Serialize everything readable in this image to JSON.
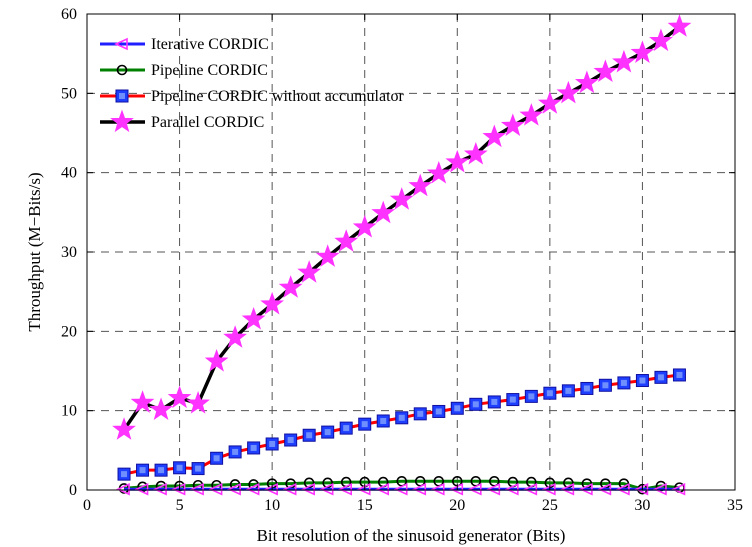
{
  "chart_data": {
    "type": "line",
    "title": "",
    "xlabel": "Bit resolution of the sinusoid generator (Bits)",
    "ylabel": "Throughput (M−Bits/s)",
    "xlim": [
      0,
      35
    ],
    "ylim": [
      0,
      60
    ],
    "x_ticks": [
      0,
      5,
      10,
      15,
      20,
      25,
      30,
      35
    ],
    "y_ticks": [
      0,
      10,
      20,
      30,
      40,
      50,
      60
    ],
    "grid": true,
    "legend_position": "top-left",
    "x": [
      2,
      3,
      4,
      5,
      6,
      7,
      8,
      9,
      10,
      11,
      12,
      13,
      14,
      15,
      16,
      17,
      18,
      19,
      20,
      21,
      22,
      23,
      24,
      25,
      26,
      27,
      28,
      29,
      30,
      31,
      32
    ],
    "series": [
      {
        "name": "Iterative CORDIC",
        "line_color": "#1f1fff",
        "marker": "triangle-left",
        "marker_color": "#ff33ff",
        "values": [
          0.1,
          0.1,
          0.1,
          0.1,
          0.1,
          0.1,
          0.1,
          0.1,
          0.1,
          0.1,
          0.1,
          0.1,
          0.1,
          0.1,
          0.1,
          0.1,
          0.1,
          0.1,
          0.1,
          0.1,
          0.1,
          0.1,
          0.1,
          0.1,
          0.1,
          0.1,
          0.1,
          0.1,
          0.1,
          0.1,
          0.1
        ]
      },
      {
        "name": "Pipeline CORDIC",
        "line_color": "#008000",
        "marker": "circle",
        "marker_color": "#000000",
        "values": [
          0.2,
          0.4,
          0.5,
          0.5,
          0.6,
          0.6,
          0.7,
          0.7,
          0.8,
          0.8,
          0.9,
          0.9,
          1.0,
          1.0,
          1.0,
          1.1,
          1.1,
          1.1,
          1.1,
          1.1,
          1.1,
          1.0,
          1.0,
          0.9,
          0.9,
          0.8,
          0.8,
          0.8,
          0.1,
          0.5,
          0.3
        ]
      },
      {
        "name": "Pipeline CORDIC without accumulator",
        "line_color": "#ff0000",
        "marker": "square",
        "marker_color": "#1f3fff",
        "values": [
          2.0,
          2.5,
          2.5,
          2.8,
          2.7,
          4.0,
          4.8,
          5.3,
          5.8,
          6.3,
          6.9,
          7.3,
          7.8,
          8.3,
          8.7,
          9.1,
          9.6,
          9.9,
          10.3,
          10.8,
          11.1,
          11.4,
          11.8,
          12.2,
          12.5,
          12.8,
          13.2,
          13.5,
          13.8,
          14.2,
          14.5
        ]
      },
      {
        "name": "Parallel CORDIC",
        "line_color": "#000000",
        "marker": "star",
        "marker_color": "#ff33ff",
        "values": [
          7.6,
          11.0,
          10.1,
          11.6,
          10.9,
          16.2,
          19.2,
          21.5,
          23.4,
          25.5,
          27.4,
          29.4,
          31.3,
          33.1,
          34.9,
          36.6,
          38.3,
          39.9,
          41.3,
          42.3,
          44.5,
          45.9,
          47.2,
          48.7,
          50.0,
          51.3,
          52.7,
          53.9,
          55.1,
          56.6,
          58.4
        ]
      }
    ]
  }
}
